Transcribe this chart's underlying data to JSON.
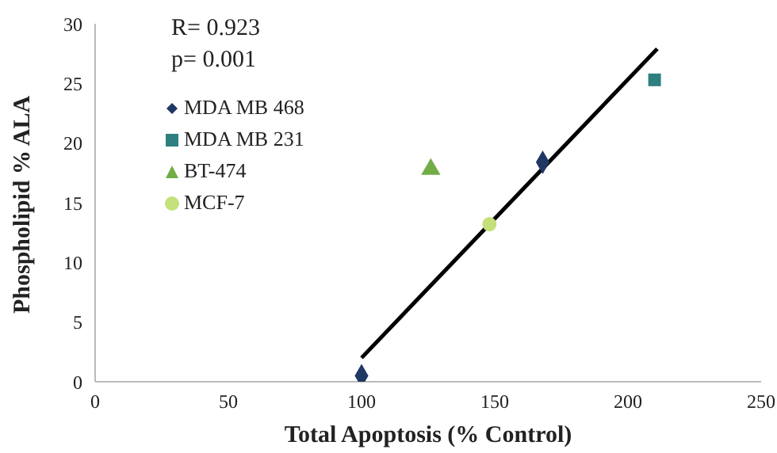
{
  "chart_data": {
    "type": "scatter",
    "xlabel": "Total Apoptosis (% Control)",
    "ylabel": "Phospholipid % ALA",
    "annotations": [
      "R= 0.923",
      "p= 0.001"
    ],
    "series": [
      {
        "name": "MDA MB 468",
        "color": "#1f3864",
        "marker": "diamond",
        "x": [
          100,
          168
        ],
        "values": [
          0.5,
          18.4
        ]
      },
      {
        "name": "MDA MB 231",
        "color": "#2e7f7f",
        "marker": "square",
        "x": [
          210
        ],
        "values": [
          25.3
        ]
      },
      {
        "name": "BT-474",
        "color": "#70ad47",
        "marker": "triangle",
        "x": [
          126
        ],
        "values": [
          17.8
        ]
      },
      {
        "name": "MCF-7",
        "color": "#c5e07a",
        "marker": "circle",
        "x": [
          148
        ],
        "values": [
          13.2
        ]
      },
      {
        "type": "line",
        "color": "#000000",
        "x": [
          100,
          211
        ],
        "values": [
          2.0,
          27.9
        ]
      }
    ],
    "xlim": [
      0,
      250
    ],
    "xticks": [
      0,
      50,
      100,
      150,
      200,
      250
    ],
    "ylim": [
      0,
      30
    ],
    "yticks": [
      0,
      5,
      10,
      15,
      20,
      25,
      30
    ],
    "grid": false,
    "legend": "top left"
  }
}
